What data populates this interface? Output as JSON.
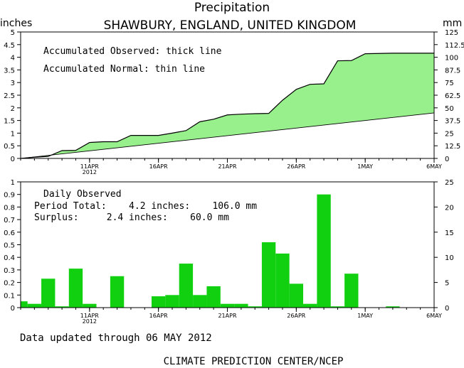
{
  "title": "Precipitation",
  "subtitle": "SHAWBURY, ENGLAND, UNITED KINGDOM",
  "top_left_unit": "inches",
  "top_right_unit": "mm",
  "accum_note_1": "Accumulated Observed: thick line",
  "accum_note_2": "Accumulated Normal: thin line",
  "daily_heading": "Daily Observed",
  "period_total_line": "Period Total:    4.2 inches:    106.0 mm",
  "surplus_line": "Surplus:     2.4 inches:    60.0 mm",
  "updated_text": "Data updated through 06 MAY 2012",
  "footer": "CLIMATE PREDICTION CENTER/NCEP",
  "colors": {
    "fill": "#98f08c",
    "bar": "#10d010",
    "axis": "#000000"
  },
  "chart_data": [
    {
      "type": "area",
      "x_tick_labels": [
        "11APR",
        "16APR",
        "21APR",
        "26APR",
        "1MAY",
        "6MAY"
      ],
      "x_tick_year": "2012",
      "x_tick_days": [
        5,
        10,
        15,
        20,
        25,
        30
      ],
      "y_left_ticks": [
        "0",
        "0.5",
        "1",
        "1.5",
        "2",
        "2.5",
        "3",
        "3.5",
        "4",
        "4.5",
        "5"
      ],
      "y_right_ticks": [
        "0",
        "12.5",
        "25",
        "37.5",
        "50",
        "62.5",
        "75",
        "87.5",
        "100",
        "112.5",
        "125"
      ],
      "ylim": [
        0,
        5
      ],
      "series": [
        {
          "name": "Accumulated Observed",
          "day": [
            0,
            1,
            2,
            3,
            4,
            5,
            6,
            7,
            8,
            9,
            10,
            11,
            12,
            13,
            14,
            15,
            16,
            17,
            18,
            19,
            20,
            21,
            22,
            23,
            24,
            25,
            26,
            27,
            28,
            29,
            30
          ],
          "values": [
            0,
            0.05,
            0.08,
            0.31,
            0.32,
            0.63,
            0.66,
            0.66,
            0.91,
            0.91,
            0.91,
            1.0,
            1.1,
            1.45,
            1.55,
            1.72,
            1.75,
            1.77,
            1.78,
            2.3,
            2.73,
            2.93,
            2.95,
            3.86,
            3.87,
            4.14,
            4.15,
            4.16,
            4.16,
            4.16,
            4.16
          ]
        },
        {
          "name": "Accumulated Normal",
          "day": [
            0,
            30
          ],
          "values": [
            0,
            1.8
          ]
        }
      ]
    },
    {
      "type": "bar",
      "x_tick_labels": [
        "11APR",
        "16APR",
        "21APR",
        "26APR",
        "1MAY",
        "6MAY"
      ],
      "x_tick_year": "2012",
      "y_left_ticks": [
        "0",
        "0.1",
        "0.2",
        "0.3",
        "0.4",
        "0.5",
        "0.6",
        "0.7",
        "0.8",
        "0.9",
        "1"
      ],
      "y_right_ticks": [
        "0",
        "5",
        "10",
        "15",
        "20",
        "25"
      ],
      "ylim": [
        0,
        1
      ],
      "day": [
        0,
        1,
        2,
        3,
        4,
        5,
        6,
        7,
        8,
        9,
        10,
        11,
        12,
        13,
        14,
        15,
        16,
        17,
        18,
        19,
        20,
        21,
        22,
        23,
        24,
        25,
        26,
        27,
        28,
        29,
        30
      ],
      "values": [
        0.05,
        0.03,
        0.23,
        0.01,
        0.31,
        0.03,
        0,
        0.25,
        0,
        0,
        0.09,
        0.1,
        0.35,
        0.1,
        0.17,
        0.03,
        0.03,
        0.01,
        0.52,
        0.43,
        0.19,
        0.03,
        0.9,
        0.01,
        0.27,
        0,
        0,
        0.01,
        0,
        0,
        0
      ]
    }
  ]
}
